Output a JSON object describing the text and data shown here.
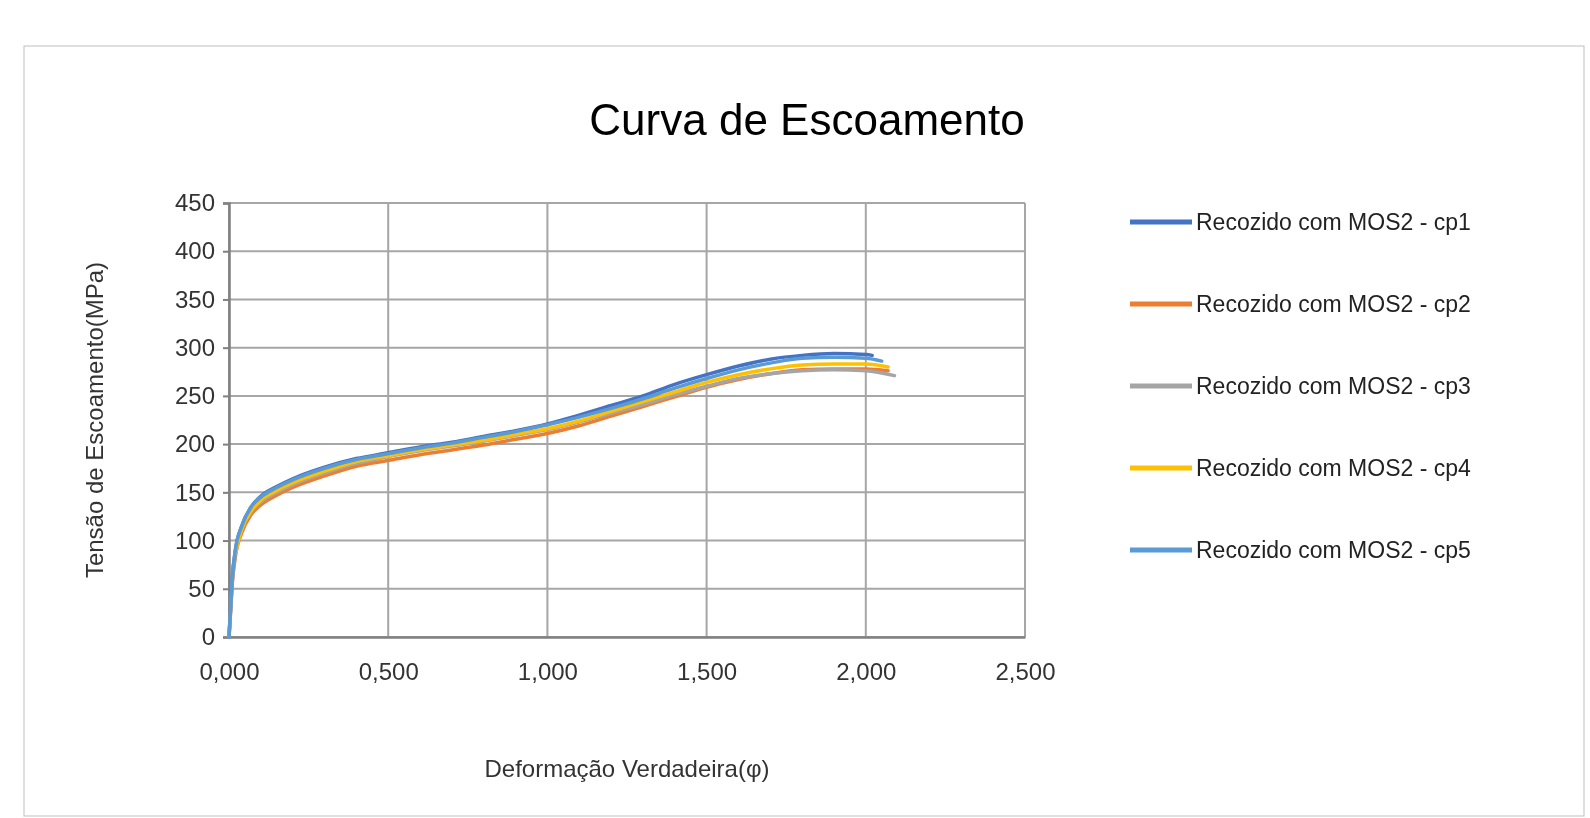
{
  "chart_data": {
    "type": "line",
    "title": "Curva de Escoamento",
    "xlabel": "Deformação Verdadeira(φ)",
    "ylabel": "Tensão de Escoamento(MPa)",
    "xlim": [
      0,
      2.5
    ],
    "xticks": [
      {
        "value": 0,
        "label": "0,000"
      },
      {
        "value": 0.5,
        "label": "0,500"
      },
      {
        "value": 1,
        "label": "1,000"
      },
      {
        "value": 1.5,
        "label": "1,500"
      },
      {
        "value": 2,
        "label": "2,000"
      },
      {
        "value": 2.5,
        "label": "2,500"
      }
    ],
    "ylim": [
      0,
      450
    ],
    "yticks": [
      0,
      50,
      100,
      150,
      200,
      250,
      300,
      350,
      400,
      450
    ],
    "grid": true,
    "legend": "right",
    "marker": "none",
    "line_style": "solid",
    "series": [
      {
        "name": "Recozido com MOS2 - cp1",
        "color": "#4472c4",
        "x": [
          0,
          0.005,
          0.01,
          0.02,
          0.04,
          0.07,
          0.1,
          0.15,
          0.2,
          0.3,
          0.4,
          0.5,
          0.6,
          0.7,
          0.8,
          0.9,
          1.0,
          1.1,
          1.2,
          1.3,
          1.4,
          1.5,
          1.6,
          1.7,
          1.8,
          1.9,
          2.0,
          2.02
        ],
        "values": [
          0,
          30,
          60,
          90,
          115,
          135,
          146,
          156,
          164,
          176,
          185,
          191,
          197,
          202,
          208,
          214,
          221,
          230,
          240,
          250,
          262,
          272,
          281,
          288,
          292,
          294,
          293,
          292
        ]
      },
      {
        "name": "Recozido com MOS2 - cp2",
        "color": "#ed7d31",
        "x": [
          0,
          0.005,
          0.01,
          0.02,
          0.04,
          0.07,
          0.1,
          0.15,
          0.2,
          0.3,
          0.4,
          0.5,
          0.6,
          0.7,
          0.8,
          0.9,
          1.0,
          1.1,
          1.2,
          1.3,
          1.4,
          1.5,
          1.6,
          1.7,
          1.8,
          1.9,
          2.0,
          2.07
        ],
        "values": [
          0,
          26,
          54,
          83,
          108,
          127,
          137,
          147,
          155,
          167,
          177,
          183,
          189,
          194,
          199,
          205,
          211,
          219,
          229,
          239,
          249,
          259,
          267,
          273,
          277,
          278,
          278,
          276
        ]
      },
      {
        "name": "Recozido com MOS2 - cp3",
        "color": "#a5a5a5",
        "x": [
          0,
          0.005,
          0.01,
          0.02,
          0.04,
          0.07,
          0.1,
          0.15,
          0.2,
          0.3,
          0.4,
          0.5,
          0.6,
          0.7,
          0.8,
          0.9,
          1.0,
          1.1,
          1.2,
          1.3,
          1.4,
          1.5,
          1.6,
          1.7,
          1.8,
          1.9,
          2.0,
          2.09
        ],
        "values": [
          0,
          27,
          56,
          86,
          111,
          130,
          140,
          150,
          158,
          170,
          180,
          187,
          193,
          198,
          203,
          209,
          215,
          223,
          232,
          241,
          251,
          260,
          268,
          273,
          276,
          277,
          276,
          271
        ]
      },
      {
        "name": "Recozido com MOS2 - cp4",
        "color": "#ffc000",
        "x": [
          0.02,
          0.04,
          0.07,
          0.1,
          0.15,
          0.2,
          0.3,
          0.4,
          0.5,
          0.6,
          0.7,
          0.8,
          0.9,
          1.0,
          1.1,
          1.2,
          1.3,
          1.4,
          1.5,
          1.6,
          1.7,
          1.8,
          1.9,
          2.0,
          2.07
        ],
        "values": [
          87,
          112,
          131,
          142,
          152,
          160,
          172,
          182,
          188,
          194,
          199,
          204,
          210,
          216,
          224,
          234,
          244,
          254,
          264,
          272,
          278,
          282,
          283,
          283,
          280
        ]
      },
      {
        "name": "Recozido com MOS2 - cp5",
        "color": "#5b9bd5",
        "x": [
          0,
          0.005,
          0.01,
          0.02,
          0.04,
          0.07,
          0.1,
          0.15,
          0.2,
          0.3,
          0.4,
          0.5,
          0.6,
          0.7,
          0.8,
          0.9,
          1.0,
          1.1,
          1.2,
          1.3,
          1.4,
          1.5,
          1.6,
          1.7,
          1.8,
          1.9,
          2.0,
          2.05
        ],
        "values": [
          0,
          30,
          60,
          90,
          115,
          135,
          145,
          155,
          163,
          175,
          184,
          190,
          196,
          201,
          207,
          213,
          220,
          228,
          237,
          247,
          258,
          268,
          277,
          284,
          289,
          290,
          289,
          286
        ]
      }
    ]
  }
}
